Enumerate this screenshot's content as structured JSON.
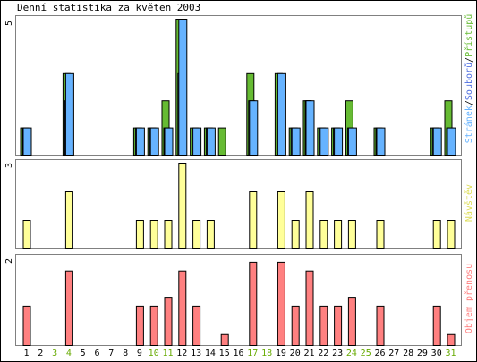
{
  "colors": {
    "frame": "#000000",
    "border": "#808080",
    "hits": "#66b3ff",
    "files": "#4f7fe0",
    "pages": "#66bb33",
    "visits": "#ffff99",
    "volume": "#ff8080",
    "day_normal": "#000000",
    "day_weekend": "#66aa00",
    "label_hits": "#66b3ff",
    "label_files": "#5070e0",
    "label_pages": "#66bb33",
    "label_visits": "#dddd55",
    "label_volume": "#ff8080"
  },
  "title": "Denní statistika za květen 2003",
  "chart_data": [
    {
      "type": "bar",
      "id": "activity",
      "categories": [
        "1",
        "2",
        "3",
        "4",
        "5",
        "6",
        "7",
        "8",
        "9",
        "10",
        "11",
        "12",
        "13",
        "14",
        "15",
        "16",
        "17",
        "18",
        "19",
        "20",
        "21",
        "22",
        "23",
        "24",
        "25",
        "26",
        "27",
        "28",
        "29",
        "30",
        "31"
      ],
      "weekend_days": [
        "3",
        "4",
        "10",
        "11",
        "17",
        "18",
        "24",
        "25",
        "31"
      ],
      "y_tick_label": "5",
      "ylim": [
        0,
        5
      ],
      "side_label": {
        "hits": "Stránek",
        "sep1": "/",
        "files": "Souborů",
        "sep2": "/",
        "pages": "Přístupů"
      },
      "series": [
        {
          "name": "Stránek",
          "values": [
            1,
            0,
            0,
            3,
            0,
            0,
            0,
            0,
            1,
            1,
            1,
            5,
            1,
            1,
            0,
            0,
            2,
            0,
            3,
            1,
            2,
            1,
            1,
            1,
            0,
            1,
            0,
            0,
            0,
            1,
            1
          ]
        },
        {
          "name": "Souborů",
          "values": [
            1,
            0,
            0,
            2,
            0,
            0,
            0,
            0,
            1,
            1,
            1,
            3,
            1,
            1,
            0,
            0,
            2,
            0,
            2,
            1,
            2,
            1,
            1,
            1,
            0,
            1,
            0,
            0,
            0,
            1,
            1
          ]
        },
        {
          "name": "Přístupů",
          "values": [
            1,
            0,
            0,
            3,
            0,
            0,
            0,
            0,
            1,
            1,
            2,
            5,
            1,
            1,
            1,
            0,
            3,
            0,
            3,
            1,
            2,
            1,
            1,
            2,
            0,
            1,
            0,
            0,
            0,
            1,
            2
          ]
        }
      ]
    },
    {
      "type": "bar",
      "id": "visits",
      "y_tick_label": "3",
      "ylim": [
        0,
        3
      ],
      "side_label": "Návštěv",
      "series": [
        {
          "name": "Návštěv",
          "values": [
            1,
            0,
            0,
            2,
            0,
            0,
            0,
            0,
            1,
            1,
            1,
            3,
            1,
            1,
            0,
            0,
            2,
            0,
            2,
            1,
            2,
            1,
            1,
            1,
            0,
            1,
            0,
            0,
            0,
            1,
            1
          ]
        }
      ]
    },
    {
      "type": "bar",
      "id": "volume",
      "y_tick_label": "2",
      "ylim": [
        0,
        2
      ],
      "side_label": "Objem přenosu",
      "series": [
        {
          "name": "Objem přenosu",
          "values": [
            0.9,
            0,
            0,
            1.7,
            0,
            0,
            0,
            0,
            0.9,
            0.9,
            1.1,
            1.7,
            0.9,
            0,
            0.25,
            0,
            1.9,
            0,
            1.9,
            0.9,
            1.7,
            0.9,
            0.9,
            1.1,
            0,
            0.9,
            0,
            0,
            0,
            0.9,
            0.25
          ]
        }
      ]
    }
  ]
}
